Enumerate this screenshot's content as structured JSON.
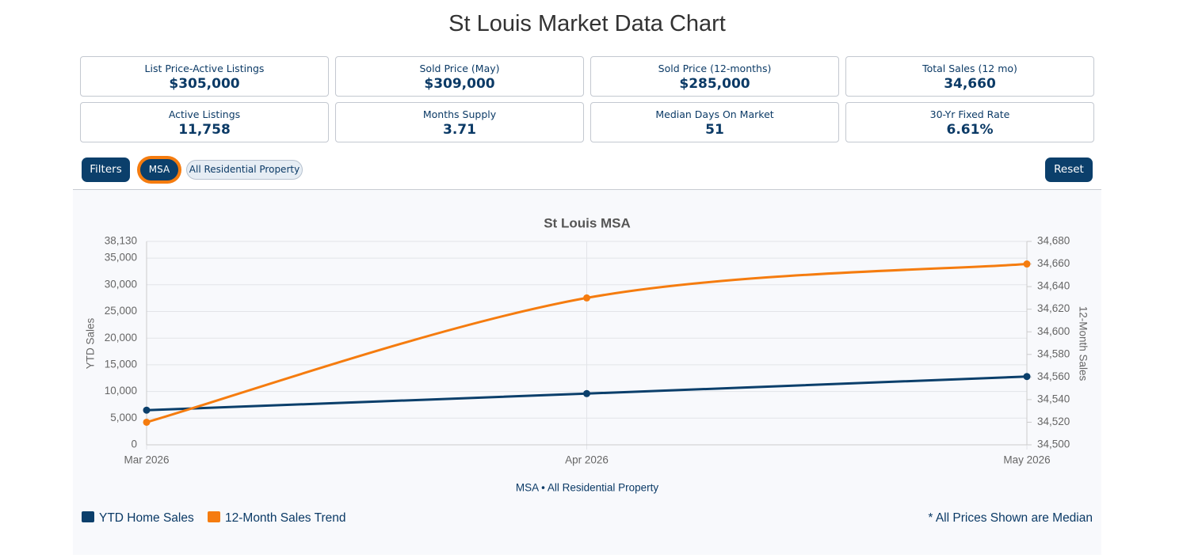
{
  "header": {
    "title": "St Louis Market Data Chart"
  },
  "stats": [
    {
      "label": "List Price-Active Listings",
      "value": "$305,000"
    },
    {
      "label": "Sold Price (May)",
      "value": "$309,000"
    },
    {
      "label": "Sold Price (12-months)",
      "value": "$285,000"
    },
    {
      "label": "Total Sales (12 mo)",
      "value": "34,660"
    },
    {
      "label": "Active Listings",
      "value": "11,758"
    },
    {
      "label": "Months Supply",
      "value": "3.71"
    },
    {
      "label": "Median Days On Market",
      "value": "51"
    },
    {
      "label": "30-Yr Fixed Rate",
      "value": "6.61%"
    }
  ],
  "filters": {
    "button": "Filters",
    "tags": [
      "MSA",
      "All Residential Property"
    ],
    "reset": "Reset"
  },
  "chart_data": {
    "type": "line",
    "title": "St Louis MSA",
    "subtitle": "MSA • All Residential Property",
    "y_label": "YTD Sales",
    "y2_label": "12-Month Sales",
    "categories": [
      "Mar 2026",
      "Apr 2026",
      "May 2026"
    ],
    "series": [
      {
        "name": "YTD Home Sales",
        "color": "#0b3f6b",
        "values": [
          6500,
          9600,
          12800
        ]
      },
      {
        "name": "12-Month Sales Trend",
        "color": "#f57c0f",
        "axis": "y2",
        "values": [
          34520,
          34630,
          34660
        ]
      }
    ],
    "ylim": [
      0,
      38130
    ],
    "yticks": [
      0,
      {
        "value": 5000,
        "label": "5,000"
      },
      {
        "value": 10000,
        "label": "10,000"
      },
      {
        "value": 15000,
        "label": "15,000"
      },
      {
        "value": 20000,
        "label": "20,000"
      },
      {
        "value": 25000,
        "label": "25,000"
      },
      {
        "value": 30000,
        "label": "30,000"
      },
      {
        "value": 35000,
        "label": "35,000"
      },
      {
        "value": 38130,
        "label": "38,130"
      }
    ],
    "y2lim": [
      34500,
      34680
    ],
    "y2ticks": [
      {
        "value": 34500,
        "label": "34,500"
      },
      {
        "value": 34520,
        "label": "34,520"
      },
      {
        "value": 34540,
        "label": "34,540"
      },
      {
        "value": 34560,
        "label": "34,560"
      },
      {
        "value": 34580,
        "label": "34,580"
      },
      {
        "value": 34600,
        "label": "34,600"
      },
      {
        "value": 34620,
        "label": "34,620"
      },
      {
        "value": 34640,
        "label": "34,640"
      },
      {
        "value": 34660,
        "label": "34,660"
      },
      {
        "value": 34680,
        "label": "34,680"
      }
    ],
    "grid": true
  },
  "footnote": "* All Prices Shown are Median"
}
